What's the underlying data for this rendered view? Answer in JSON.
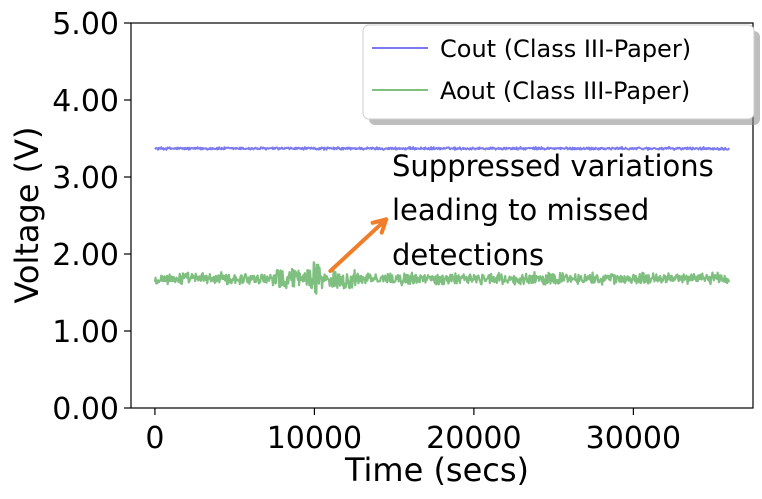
{
  "chart_data": {
    "type": "line",
    "title": "",
    "xlabel": "Time (secs)",
    "ylabel": "Voltage (V)",
    "xlim": [
      -1500,
      37500
    ],
    "ylim": [
      0,
      5
    ],
    "x_ticks": [
      0,
      10000,
      20000,
      30000
    ],
    "x_tick_labels": [
      "0",
      "10000",
      "20000",
      "30000"
    ],
    "y_ticks": [
      0,
      1,
      2,
      3,
      4,
      5
    ],
    "y_tick_labels": [
      "0.00",
      "1.00",
      "2.00",
      "3.00",
      "4.00",
      "5.00"
    ],
    "grid": false,
    "legend_position": "top-right",
    "series": [
      {
        "name": "Cout (Class III-Paper)",
        "color": "#7b7bef",
        "x_start": 0,
        "x_end": 36000,
        "mean": 3.37,
        "noise_amplitude": 0.02
      },
      {
        "name": "Aout (Class III-Paper)",
        "color": "#7fbf7f",
        "x_start": 0,
        "x_end": 36000,
        "mean": 1.68,
        "noise_amplitude": 0.09,
        "burst_x": 10000,
        "burst_min": 1.28,
        "burst_max": 1.95
      }
    ],
    "annotation": {
      "lines": [
        "Suppressed variations",
        "leading to missed",
        "detections"
      ],
      "arrow_from": [
        11000,
        1.78
      ],
      "arrow_to": [
        14500,
        2.45
      ],
      "arrow_color": "#f07d2a"
    }
  }
}
